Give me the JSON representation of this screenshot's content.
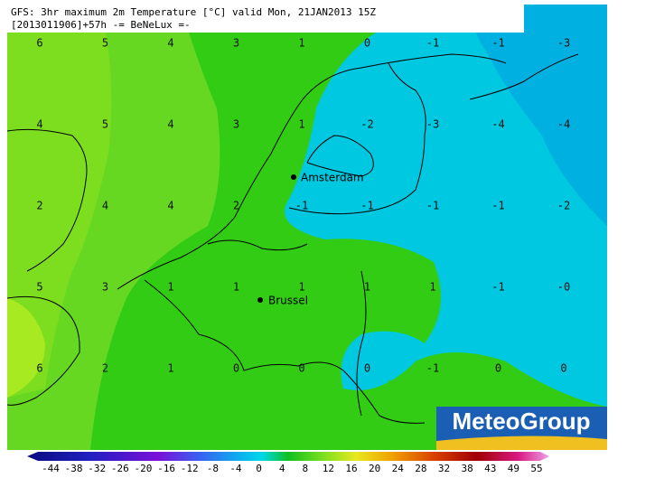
{
  "header": {
    "line1": "GFS: 3hr maximum 2m Temperature [°C] valid Mon, 21JAN2013 15Z",
    "line2": "[2013011906]+57h -= BeNeLux =-"
  },
  "grid_labels": [
    [
      "6",
      "5",
      "4",
      "3",
      "1",
      "0",
      "-1",
      "-1",
      "-3"
    ],
    [
      "4",
      "5",
      "4",
      "3",
      "1",
      "-2",
      "-3",
      "-4",
      "-4"
    ],
    [
      "2",
      "4",
      "4",
      "2",
      "-1",
      "-1",
      "-1",
      "-1",
      "-2"
    ],
    [
      "5",
      "3",
      "1",
      "1",
      "1",
      "1",
      "1",
      "-1",
      "-0"
    ],
    [
      "6",
      "2",
      "1",
      "0",
      "0",
      "0",
      "-1",
      "0",
      "0"
    ]
  ],
  "cities": [
    {
      "name": "Amsterdam"
    },
    {
      "name": "Brussel"
    }
  ],
  "logo": "MeteoGroup",
  "colorbar": {
    "labels": [
      -44,
      -38,
      -32,
      -26,
      -20,
      -16,
      -12,
      -8,
      -4,
      0,
      4,
      8,
      12,
      16,
      20,
      24,
      28,
      32,
      38,
      43,
      49,
      55
    ]
  }
}
